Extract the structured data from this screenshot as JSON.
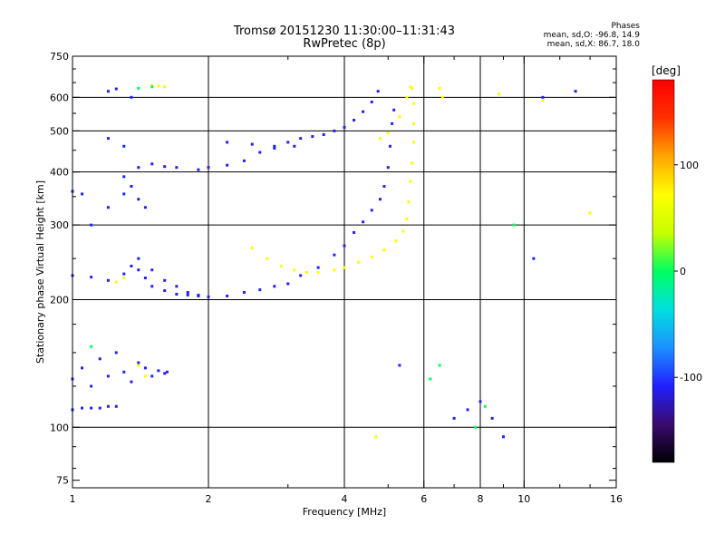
{
  "header": {
    "title": "Tromsø 20151230 11:30:00–11:31:43",
    "subtitle": "RwPretec (8p)"
  },
  "stats": {
    "heading": "Phases",
    "line1": "mean, sd,O: -96.8, 14.9",
    "line2": "mean, sd,X:  86.7, 18.0"
  },
  "chart_data": {
    "type": "scatter",
    "xlabel": "Frequency [MHz]",
    "ylabel": "Stationary phase Virtual Height [km]",
    "x_scale": "log",
    "y_scale": "log",
    "xlim": [
      1,
      16
    ],
    "ylim": [
      72,
      750
    ],
    "x_ticks": [
      1,
      2,
      4,
      6,
      8,
      10,
      16
    ],
    "x_minor_ticks": [
      3,
      5,
      7,
      9,
      12,
      14
    ],
    "y_ticks": [
      75,
      100,
      200,
      300,
      400,
      500,
      600,
      750
    ],
    "y_minor_ticks": [
      80,
      90,
      125,
      150,
      175,
      250,
      350,
      450,
      550,
      650,
      700
    ],
    "grid": true,
    "grid_x": [
      2,
      4,
      6,
      8,
      10
    ],
    "grid_y": [
      100,
      200,
      300,
      400,
      500,
      600
    ],
    "colorbar": {
      "label": "[deg]",
      "range": [
        -180,
        180
      ],
      "ticks": [
        -100,
        0,
        100
      ],
      "colors": [
        "#000000",
        "#3a0a6e",
        "#2020ff",
        "#1e90ff",
        "#00e0e0",
        "#00ff60",
        "#c8ff00",
        "#ffff00",
        "#ffa500",
        "#ff3000",
        "#ff0000"
      ]
    },
    "series": [
      {
        "values": [
          [
            1.0,
            110
          ],
          [
            1.05,
            111
          ],
          [
            1.1,
            111
          ],
          [
            1.15,
            111
          ],
          [
            1.2,
            112
          ],
          [
            1.25,
            112
          ],
          [
            1.0,
            130
          ],
          [
            1.05,
            138
          ],
          [
            1.1,
            125
          ],
          [
            1.15,
            145
          ],
          [
            1.2,
            132
          ],
          [
            1.25,
            150
          ],
          [
            1.3,
            135
          ],
          [
            1.35,
            128
          ],
          [
            1.4,
            142
          ],
          [
            1.45,
            138
          ],
          [
            1.5,
            132
          ],
          [
            1.55,
            136
          ],
          [
            1.6,
            134
          ],
          [
            1.62,
            135
          ],
          [
            1.0,
            228
          ],
          [
            1.1,
            226
          ],
          [
            1.2,
            222
          ],
          [
            1.3,
            230
          ],
          [
            1.35,
            240
          ],
          [
            1.4,
            235
          ],
          [
            1.45,
            225
          ],
          [
            1.5,
            215
          ],
          [
            1.6,
            210
          ],
          [
            1.7,
            206
          ],
          [
            1.8,
            205
          ],
          [
            1.9,
            204
          ],
          [
            2.0,
            203
          ],
          [
            2.2,
            204
          ],
          [
            2.4,
            208
          ],
          [
            2.6,
            211
          ],
          [
            2.8,
            215
          ],
          [
            3.0,
            218
          ],
          [
            1.4,
            250
          ],
          [
            1.5,
            235
          ],
          [
            1.6,
            222
          ],
          [
            1.7,
            215
          ],
          [
            1.8,
            208
          ],
          [
            1.9,
            205
          ],
          [
            3.2,
            228
          ],
          [
            3.5,
            238
          ],
          [
            3.8,
            255
          ],
          [
            4.0,
            268
          ],
          [
            4.2,
            288
          ],
          [
            4.4,
            305
          ],
          [
            4.6,
            325
          ],
          [
            4.8,
            345
          ],
          [
            4.9,
            370
          ],
          [
            5.0,
            410
          ],
          [
            5.05,
            460
          ],
          [
            5.1,
            520
          ],
          [
            5.15,
            560
          ],
          [
            1.0,
            360
          ],
          [
            1.05,
            355
          ],
          [
            1.1,
            300
          ],
          [
            1.2,
            330
          ],
          [
            1.3,
            355
          ],
          [
            1.35,
            370
          ],
          [
            1.4,
            345
          ],
          [
            1.45,
            330
          ],
          [
            1.3,
            390
          ],
          [
            1.4,
            410
          ],
          [
            1.5,
            418
          ],
          [
            1.6,
            412
          ],
          [
            1.7,
            410
          ],
          [
            1.9,
            405
          ],
          [
            2.0,
            410
          ],
          [
            2.2,
            415
          ],
          [
            2.4,
            425
          ],
          [
            2.6,
            445
          ],
          [
            2.8,
            460
          ],
          [
            3.0,
            470
          ],
          [
            3.2,
            480
          ],
          [
            3.4,
            485
          ],
          [
            3.6,
            490
          ],
          [
            3.8,
            500
          ],
          [
            4.0,
            510
          ],
          [
            4.2,
            530
          ],
          [
            4.4,
            555
          ],
          [
            4.6,
            585
          ],
          [
            4.75,
            620
          ],
          [
            2.2,
            470
          ],
          [
            2.5,
            465
          ],
          [
            2.8,
            455
          ],
          [
            3.1,
            460
          ],
          [
            1.2,
            620
          ],
          [
            1.25,
            628
          ],
          [
            1.35,
            600
          ],
          [
            1.3,
            460
          ],
          [
            1.2,
            480
          ],
          [
            5.3,
            140
          ],
          [
            7.0,
            105
          ],
          [
            7.5,
            110
          ],
          [
            8.0,
            115
          ],
          [
            8.5,
            105
          ],
          [
            9.0,
            95
          ],
          [
            11.0,
            600
          ],
          [
            13.0,
            620
          ],
          [
            10.5,
            250
          ]
        ]
      },
      {
        "values": [
          [
            2.5,
            265
          ],
          [
            2.7,
            250
          ],
          [
            2.9,
            240
          ],
          [
            3.1,
            235
          ],
          [
            3.3,
            232
          ],
          [
            3.5,
            232
          ],
          [
            3.8,
            235
          ],
          [
            4.0,
            238
          ],
          [
            4.3,
            245
          ],
          [
            4.6,
            252
          ],
          [
            4.9,
            262
          ],
          [
            5.2,
            275
          ],
          [
            5.4,
            290
          ],
          [
            5.5,
            310
          ],
          [
            5.55,
            340
          ],
          [
            5.6,
            380
          ],
          [
            5.65,
            420
          ],
          [
            5.7,
            470
          ],
          [
            5.7,
            520
          ],
          [
            5.7,
            580
          ],
          [
            5.65,
            630
          ],
          [
            4.8,
            480
          ],
          [
            5.0,
            495
          ],
          [
            5.3,
            540
          ],
          [
            5.5,
            600
          ],
          [
            5.6,
            635
          ],
          [
            1.3,
            225
          ],
          [
            1.25,
            220
          ],
          [
            1.5,
            640
          ],
          [
            1.55,
            638
          ],
          [
            1.6,
            635
          ],
          [
            6.5,
            630
          ],
          [
            6.6,
            600
          ],
          [
            4.7,
            95
          ],
          [
            8.8,
            610
          ],
          [
            11.0,
            590
          ],
          [
            14.0,
            320
          ],
          [
            1.4,
            140
          ],
          [
            1.45,
            132
          ]
        ]
      },
      {
        "values": [
          [
            1.4,
            630
          ],
          [
            1.5,
            635
          ],
          [
            1.1,
            155
          ],
          [
            6.2,
            130
          ],
          [
            7.8,
            100
          ],
          [
            8.2,
            112
          ],
          [
            9.5,
            300
          ],
          [
            6.5,
            140
          ]
        ]
      }
    ]
  }
}
